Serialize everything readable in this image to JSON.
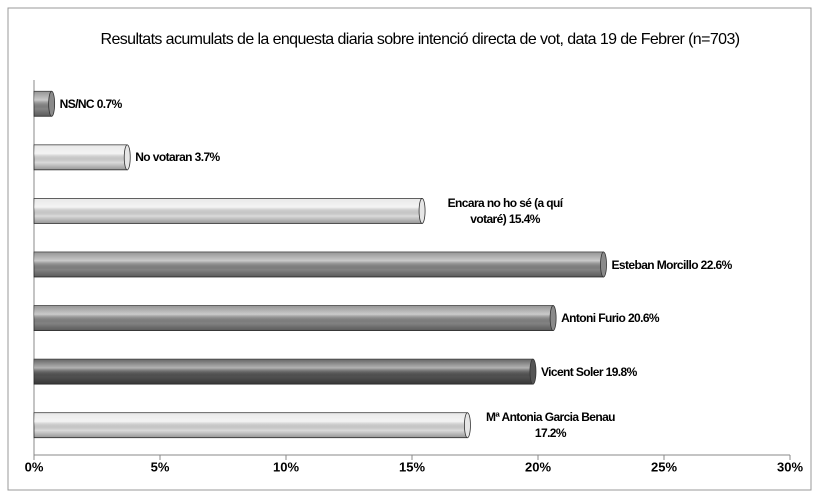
{
  "chart_data": {
    "type": "barh",
    "title": "Resultats acumulats de la enquesta diaria sobre intenció directa de vot, data 19 de Febrer  (n=703)",
    "categories": [
      "NS/NC",
      "No votaran",
      "Encara no ho sé (a quí votaré)",
      "Esteban Morcillo",
      "Antoni Furio",
      "Vicent Soler",
      "Mª Antonia Garcia Benau"
    ],
    "values": [
      0.7,
      3.7,
      15.4,
      22.6,
      20.6,
      19.8,
      17.2
    ],
    "value_labels": [
      "0.7%",
      "3.7%",
      "15.4%",
      "22.6%",
      "20.6%",
      "19.8%",
      "17.2%"
    ],
    "colors": [
      "#8a8a8a",
      "#e6e6e6",
      "#e6e6e6",
      "#8a8a8a",
      "#8a8a8a",
      "#555555",
      "#e6e6e6"
    ],
    "xlim": [
      0,
      30
    ],
    "xticks": [
      {
        "value": 0,
        "label": "0%"
      },
      {
        "value": 5,
        "label": "5%"
      },
      {
        "value": 10,
        "label": "10%"
      },
      {
        "value": 15,
        "label": "15%"
      },
      {
        "value": 20,
        "label": "20%"
      },
      {
        "value": 25,
        "label": "25%"
      },
      {
        "value": 30,
        "label": "30%"
      }
    ]
  }
}
